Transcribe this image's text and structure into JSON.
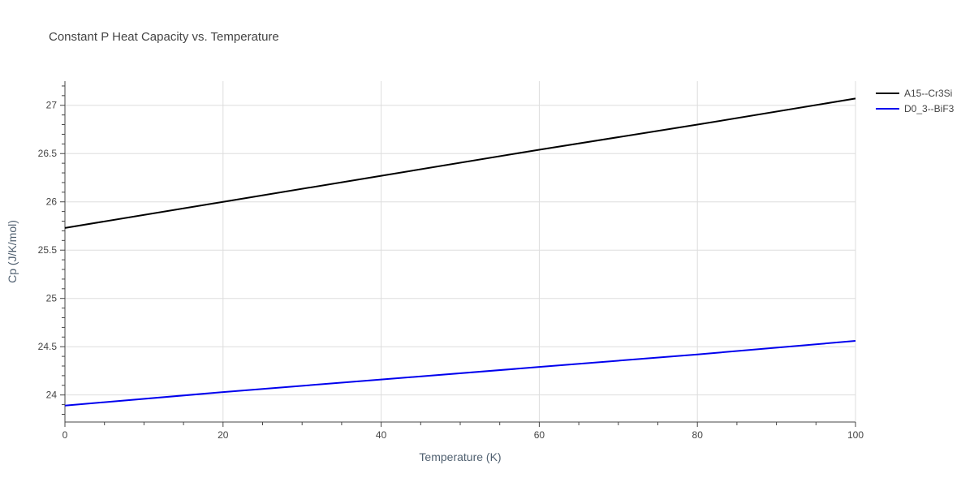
{
  "chart_data": {
    "type": "line",
    "title": "Constant P Heat Capacity vs. Temperature",
    "xlabel": "Temperature (K)",
    "ylabel": "Cp (J/K/mol)",
    "xlim": [
      0,
      100
    ],
    "ylim": [
      23.72,
      27.25
    ],
    "xticks": [
      0,
      20,
      40,
      60,
      80,
      100
    ],
    "yticks": [
      24,
      24.5,
      25,
      25.5,
      26,
      26.5,
      27
    ],
    "xtick_labels": [
      "0",
      "20",
      "40",
      "60",
      "80",
      "100"
    ],
    "ytick_labels": [
      "24",
      "24.5",
      "25",
      "25.5",
      "26",
      "26.5",
      "27"
    ],
    "grid": true,
    "legend_position": "top-right outside",
    "series": [
      {
        "name": "A15--Cr3Si",
        "color": "#000000",
        "x": [
          0,
          20,
          40,
          60,
          80,
          100
        ],
        "y": [
          25.73,
          26.0,
          26.27,
          26.54,
          26.8,
          27.07
        ]
      },
      {
        "name": "D0_3--BiF3",
        "color": "#0000ee",
        "x": [
          0,
          20,
          40,
          60,
          80,
          100
        ],
        "y": [
          23.89,
          24.03,
          24.16,
          24.29,
          24.42,
          24.56
        ]
      }
    ]
  }
}
